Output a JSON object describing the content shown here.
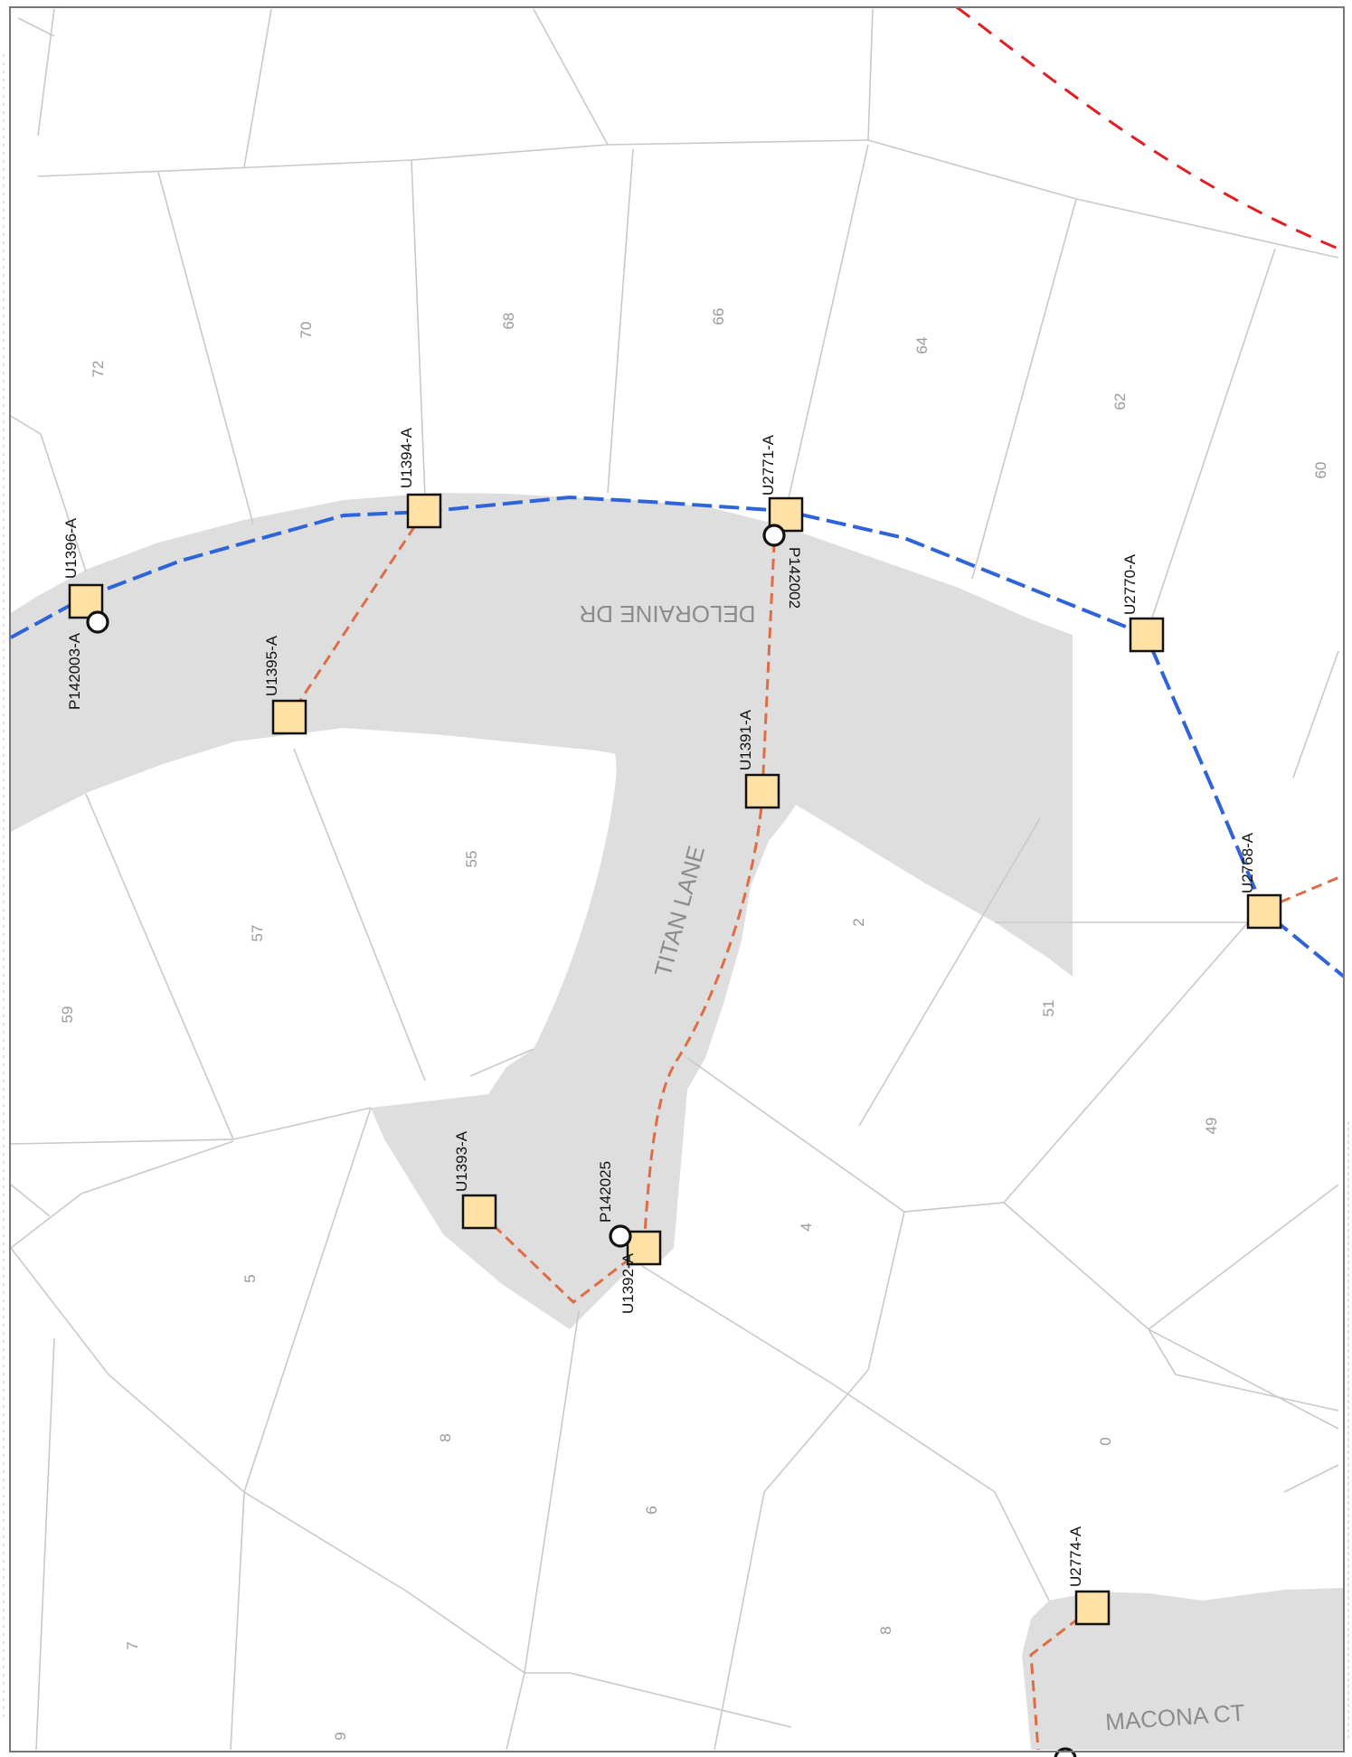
{
  "map": {
    "colors": {
      "road_fill": "#dedede",
      "parcel_line": "#c9c9c9",
      "blue_cable": "#2f64d8",
      "orange_cable": "#de6d45",
      "boundary": "#e21d24",
      "pit_fill": "#ffe1a6"
    },
    "streets": [
      {
        "id": "deloraine",
        "name": "DELORAINE DR"
      },
      {
        "id": "titan",
        "name": "TITAN LANE"
      },
      {
        "id": "macona",
        "name": "MACONA CT"
      }
    ],
    "lots": [
      {
        "id": "lot-72",
        "number": "72"
      },
      {
        "id": "lot-70",
        "number": "70"
      },
      {
        "id": "lot-68",
        "number": "68"
      },
      {
        "id": "lot-66",
        "number": "66"
      },
      {
        "id": "lot-64",
        "number": "64"
      },
      {
        "id": "lot-62",
        "number": "62"
      },
      {
        "id": "lot-60",
        "number": "60"
      },
      {
        "id": "lot-59",
        "number": "59"
      },
      {
        "id": "lot-57",
        "number": "57"
      },
      {
        "id": "lot-55",
        "number": "55"
      },
      {
        "id": "lot-2",
        "number": "2"
      },
      {
        "id": "lot-51",
        "number": "51"
      },
      {
        "id": "lot-49",
        "number": "49"
      },
      {
        "id": "lot-5",
        "number": "5"
      },
      {
        "id": "lot-4",
        "number": "4"
      },
      {
        "id": "lot-8a",
        "number": "8"
      },
      {
        "id": "lot-6",
        "number": "6"
      },
      {
        "id": "lot-0",
        "number": "0"
      },
      {
        "id": "lot-8b",
        "number": "8"
      },
      {
        "id": "lot-7",
        "number": "7"
      },
      {
        "id": "lot-9",
        "number": "9"
      }
    ],
    "pits": [
      {
        "id": "U1396-A",
        "label": "U1396-A"
      },
      {
        "id": "U1394-A",
        "label": "U1394-A"
      },
      {
        "id": "U1395-A",
        "label": "U1395-A"
      },
      {
        "id": "U2771-A",
        "label": "U2771-A"
      },
      {
        "id": "U1391-A",
        "label": "U1391-A"
      },
      {
        "id": "U2770-A",
        "label": "U2770-A"
      },
      {
        "id": "U2768-A",
        "label": "U2768-A"
      },
      {
        "id": "U1393-A",
        "label": "U1393-A"
      },
      {
        "id": "U1392-A",
        "label": "U1392-A"
      },
      {
        "id": "U2774-A",
        "label": "U2774-A"
      }
    ],
    "poles": [
      {
        "id": "P142003-A",
        "label": "P142003-A"
      },
      {
        "id": "P142002",
        "label": "P142002"
      },
      {
        "id": "P142025",
        "label": "P142025"
      }
    ]
  }
}
